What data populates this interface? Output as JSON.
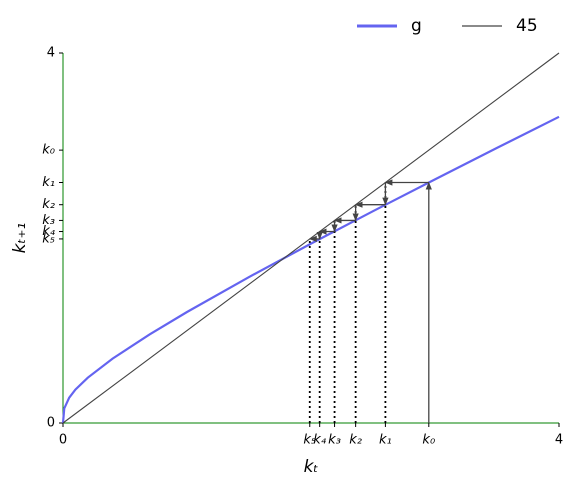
{
  "chart_data": {
    "type": "line",
    "x_label": "kₜ",
    "y_label": "kₜ₊₁",
    "series": [
      {
        "name": "g",
        "color": "#6464f0",
        "x": [
          0,
          0.01,
          0.05,
          0.1,
          0.2,
          0.4,
          0.7,
          1,
          1.5,
          2,
          2.5,
          3,
          3.5,
          4
        ],
        "values": [
          0,
          0.157,
          0.274,
          0.361,
          0.49,
          0.696,
          0.959,
          1.2,
          1.578,
          1.939,
          2.29,
          2.634,
          2.974,
          3.31
        ]
      },
      {
        "name": "45",
        "color": "#444444",
        "x": [
          0,
          4
        ],
        "values": [
          0,
          4
        ]
      }
    ],
    "xlim": [
      0,
      4
    ],
    "ylim": [
      0,
      4
    ],
    "xticks": [
      0,
      {
        "value": 2.95,
        "label": "k₀"
      },
      {
        "value": 2.6,
        "label": "k₁"
      },
      {
        "value": 2.36,
        "label": "k₂"
      },
      {
        "value": 2.19,
        "label": "k₃"
      },
      {
        "value": 2.07,
        "label": "k₄"
      },
      {
        "value": 1.99,
        "label": "k₅"
      },
      4
    ],
    "yticks": [
      0,
      {
        "value": 2.95,
        "label": "k₀"
      },
      {
        "value": 2.6,
        "label": "k₁"
      },
      {
        "value": 2.36,
        "label": "k₂"
      },
      {
        "value": 2.19,
        "label": "k₃"
      },
      {
        "value": 2.07,
        "label": "k₄"
      },
      {
        "value": 1.99,
        "label": "k₅"
      },
      4
    ],
    "axis_color": "green"
  }
}
